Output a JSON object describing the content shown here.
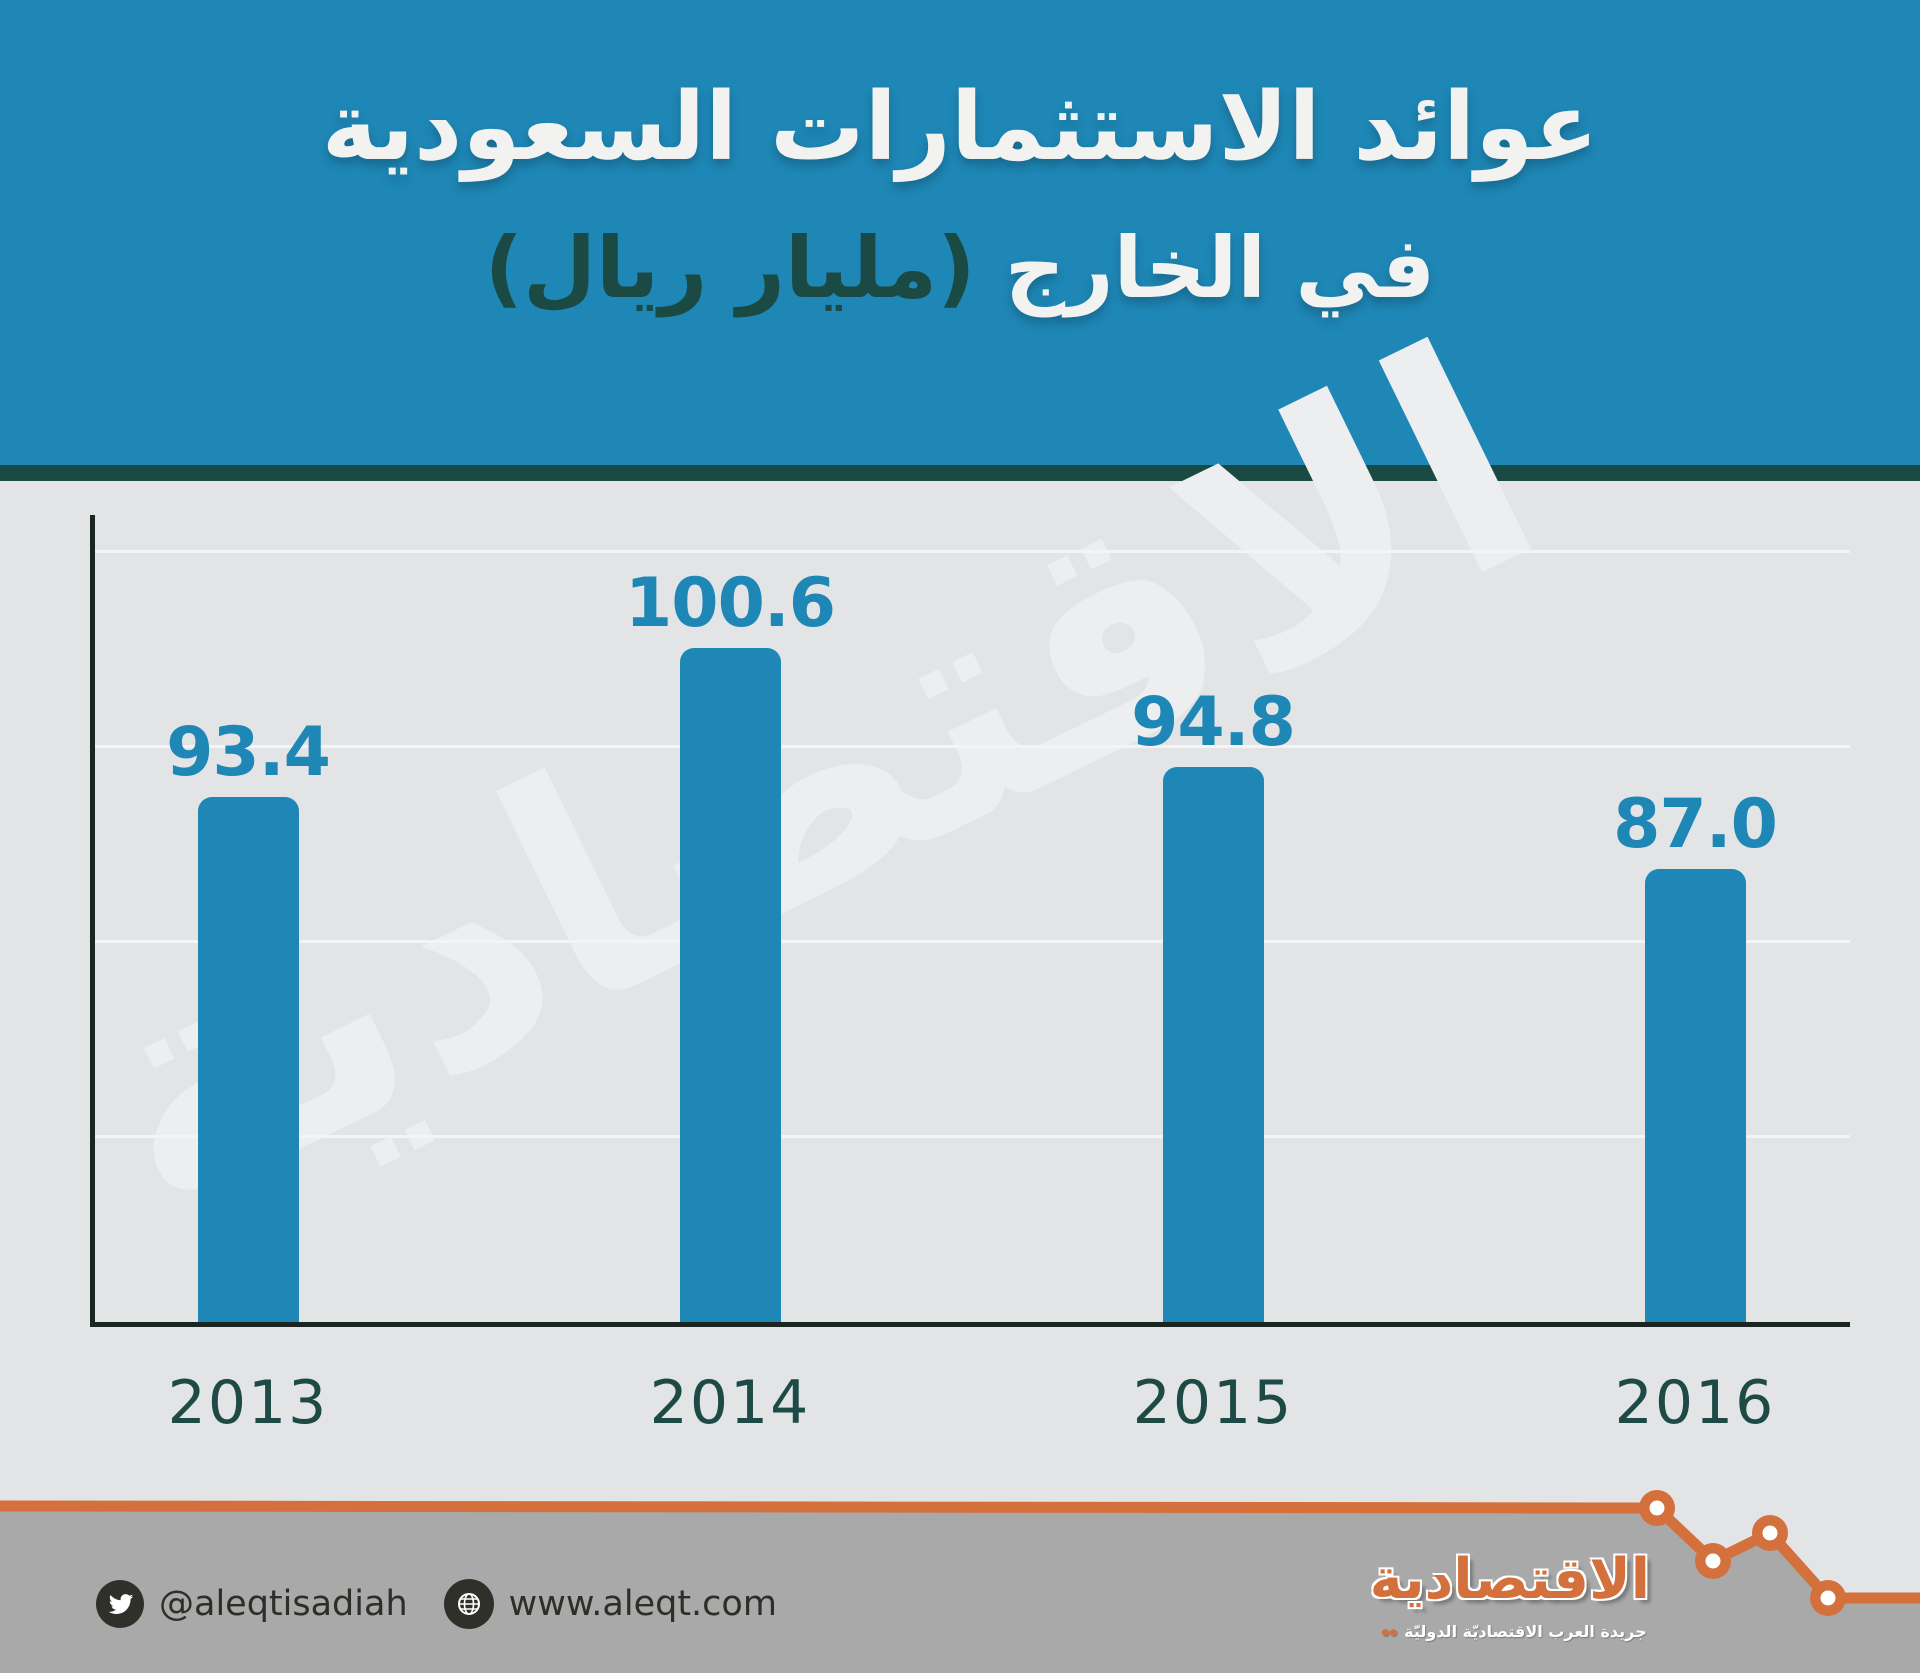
{
  "header": {
    "title_line1": "عوائد الاستثمارات السعودية",
    "title_line2_prefix": "في الخارج ",
    "title_line2_unit": "(مليار ريال)"
  },
  "chart_data": {
    "type": "bar",
    "title": "عوائد الاستثمارات السعودية في الخارج",
    "unit": "مليار ريال",
    "categories": [
      "2013",
      "2014",
      "2015",
      "2016"
    ],
    "values": [
      93.4,
      100.6,
      94.8,
      87.0
    ],
    "value_labels": [
      "93.4",
      "100.6",
      "94.8",
      "87.0"
    ],
    "bar_color": "#1E87B6",
    "label_color": "#1E87B6",
    "gridlines": 4,
    "grid_on": true,
    "legend": "none",
    "axis_note": "value axis truncated - bars not zero-based"
  },
  "watermark_text": "الاقتصادية",
  "footer": {
    "twitter_handle": "@aleqtisadiah",
    "website": "www.aleqt.com"
  },
  "logo": {
    "title": "الاقتصادية",
    "tagline": "جريدة العرب الاقتصاديّة الدوليّة"
  },
  "colors": {
    "primary_blue": "#1E87B6",
    "dark_teal": "#1B4A45",
    "orange": "#D4703C",
    "footer_gray": "#A9A9A9",
    "chart_bg": "#E3E4E6",
    "axis_color": "#1B2522"
  }
}
